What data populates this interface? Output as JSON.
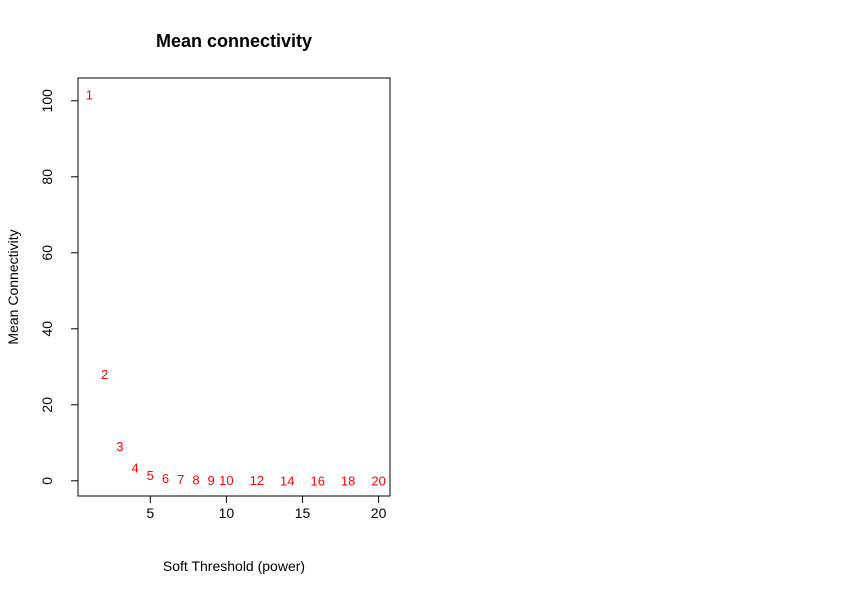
{
  "chart_data": {
    "type": "scatter",
    "title": "Mean connectivity",
    "xlabel": "Soft Threshold (power)",
    "ylabel": "Mean Connectivity",
    "xlim": [
      0.25,
      20.75
    ],
    "ylim": [
      -4.0,
      106.0
    ],
    "x_ticks": [
      5,
      10,
      15,
      20
    ],
    "y_ticks": [
      0,
      20,
      40,
      60,
      80,
      100
    ],
    "grid": false,
    "marker": "text-label",
    "point_color": "#ff0000",
    "points": [
      {
        "label": "1",
        "x": 1,
        "y": 101.5
      },
      {
        "label": "2",
        "x": 2,
        "y": 28.0
      },
      {
        "label": "3",
        "x": 3,
        "y": 9.0
      },
      {
        "label": "4",
        "x": 4,
        "y": 3.4
      },
      {
        "label": "5",
        "x": 5,
        "y": 1.4
      },
      {
        "label": "6",
        "x": 6,
        "y": 0.6
      },
      {
        "label": "7",
        "x": 7,
        "y": 0.3
      },
      {
        "label": "8",
        "x": 8,
        "y": 0.15
      },
      {
        "label": "9",
        "x": 9,
        "y": 0.08
      },
      {
        "label": "10",
        "x": 10,
        "y": 0.05
      },
      {
        "label": "12",
        "x": 12,
        "y": 0.02
      },
      {
        "label": "14",
        "x": 14,
        "y": 0.01
      },
      {
        "label": "16",
        "x": 16,
        "y": 0.005
      },
      {
        "label": "18",
        "x": 18,
        "y": 0.003
      },
      {
        "label": "20",
        "x": 20,
        "y": 0.002
      }
    ]
  }
}
